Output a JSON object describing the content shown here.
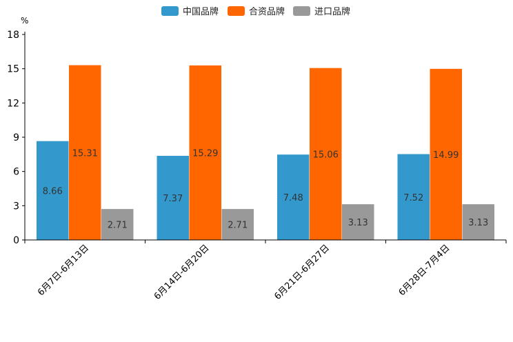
{
  "chart_data": {
    "type": "bar",
    "title": "",
    "xlabel": "",
    "ylabel": "%",
    "ylim": [
      0,
      18
    ],
    "yticks": [
      0,
      3,
      6,
      9,
      12,
      15,
      18
    ],
    "grid": false,
    "legend_position": "top-center",
    "categories": [
      "6月7日-6月13日",
      "6月14日-6月20日",
      "6月21日-6月27日",
      "6月28日-7月4日"
    ],
    "series": [
      {
        "name": "中国品牌",
        "color": "#3399cc",
        "values": [
          8.66,
          7.37,
          7.48,
          7.52
        ]
      },
      {
        "name": "合资品牌",
        "color": "#ff6600",
        "values": [
          15.31,
          15.29,
          15.06,
          14.99
        ]
      },
      {
        "name": "进口品牌",
        "color": "#999999",
        "values": [
          2.71,
          2.71,
          3.13,
          3.13
        ]
      }
    ]
  }
}
